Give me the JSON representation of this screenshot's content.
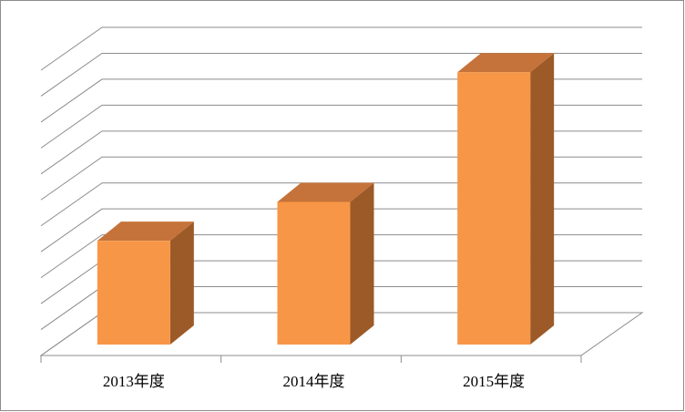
{
  "chart_data": {
    "type": "bar3d",
    "categories": [
      "2013年度",
      "2014年度",
      "2015年度"
    ],
    "values": [
      4,
      5.5,
      10.5
    ],
    "color": "#f79646",
    "ylim": [
      0,
      11
    ],
    "yticks": [
      0,
      1,
      2,
      3,
      4,
      5,
      6,
      7,
      8,
      9,
      10,
      11
    ],
    "grid": true
  }
}
